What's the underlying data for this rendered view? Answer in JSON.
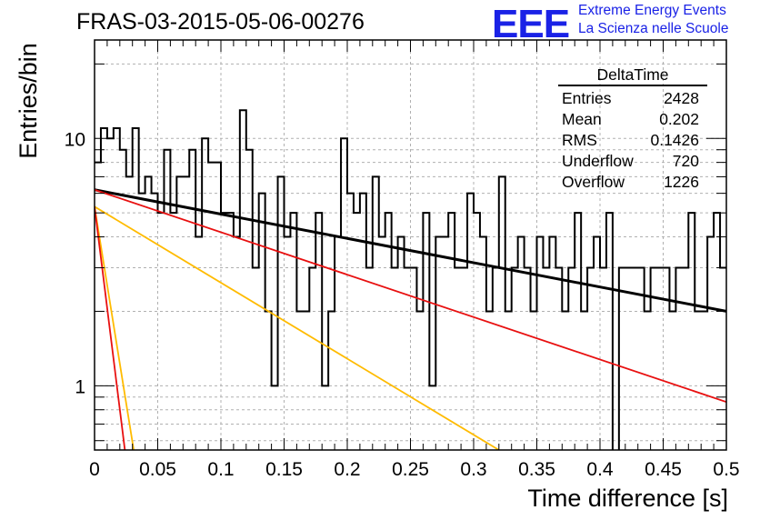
{
  "title": "FRAS-03-2015-05-06-00276",
  "logo": {
    "mark": "EEE",
    "line1": "Extreme Energy Events",
    "line2": "La Scienza nelle Scuole",
    "color": "#1a22e6"
  },
  "stats_box": {
    "header": "DeltaTime",
    "rows": [
      {
        "label": "Entries",
        "value": "2428"
      },
      {
        "label": "Mean",
        "value": "0.202"
      },
      {
        "label": "RMS",
        "value": "0.1426"
      },
      {
        "label": "Underflow",
        "value": "720"
      },
      {
        "label": "Overflow",
        "value": "1226"
      }
    ]
  },
  "chart_data": {
    "type": "line",
    "title": "FRAS-03-2015-05-06-00276",
    "xlabel": "Time difference [s]",
    "ylabel": "Entries/bin",
    "xlim": [
      0,
      0.5
    ],
    "ylim": [
      0.55,
      25
    ],
    "y_scale": "log",
    "grid": true,
    "x_ticks": [
      "0",
      "0.05",
      "0.1",
      "0.15",
      "0.2",
      "0.25",
      "0.3",
      "0.35",
      "0.4",
      "0.45",
      "0.5"
    ],
    "y_ticks": [
      "1",
      "10"
    ],
    "histogram": {
      "bin_width": 0.005,
      "color": "#000000",
      "counts": [
        8,
        11,
        10,
        11,
        9,
        7,
        11,
        6,
        7,
        6,
        5,
        9,
        5,
        7,
        7,
        9,
        4,
        10,
        8,
        8,
        5,
        5,
        4,
        13,
        9,
        3,
        6,
        2,
        1,
        7,
        4,
        5,
        2,
        2,
        3,
        5,
        1,
        2,
        4,
        10,
        6,
        5,
        6,
        3,
        7,
        4,
        5,
        3,
        4,
        3,
        3,
        2,
        5,
        1,
        4,
        4,
        5,
        3,
        3,
        6,
        5,
        4,
        2,
        3,
        7,
        2,
        3,
        4,
        3,
        2,
        4,
        3,
        4,
        3,
        2,
        3,
        5,
        2,
        3,
        4,
        3,
        5,
        0.4,
        3,
        3,
        3,
        3,
        2,
        3,
        3,
        3,
        2,
        3,
        3,
        5,
        2,
        2,
        4,
        5,
        3
      ]
    },
    "series": [
      {
        "color": "#000000",
        "points": [
          [
            0,
            6.2
          ],
          [
            0.5,
            2.0
          ]
        ]
      },
      {
        "color": "#e81010",
        "points": [
          [
            0,
            6.2
          ],
          [
            0.5,
            0.86
          ]
        ]
      },
      {
        "color": "#ffbb00",
        "points": [
          [
            0,
            5.3
          ],
          [
            0.32,
            0.55
          ]
        ]
      },
      {
        "color": "#ffbb00",
        "points": [
          [
            0,
            5.3
          ],
          [
            0.031,
            0.55
          ]
        ]
      },
      {
        "color": "#e81010",
        "points": [
          [
            0,
            5.3
          ],
          [
            0.024,
            0.55
          ]
        ]
      }
    ]
  }
}
